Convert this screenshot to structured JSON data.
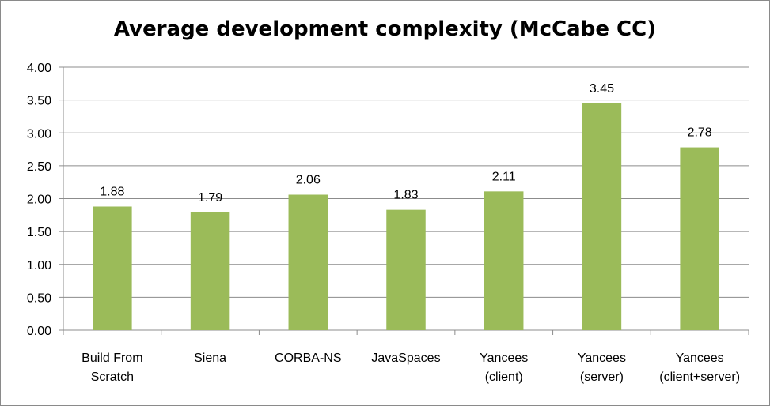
{
  "chart_data": {
    "type": "bar",
    "title": "Average development complexity (McCabe CC)",
    "categories": [
      [
        "Build From",
        "Scratch"
      ],
      [
        "Siena"
      ],
      [
        "CORBA-NS"
      ],
      [
        "JavaSpaces"
      ],
      [
        "Yancees",
        "(client)"
      ],
      [
        "Yancees",
        "(server)"
      ],
      [
        "Yancees",
        "(client+server)"
      ]
    ],
    "values": [
      1.88,
      1.79,
      2.06,
      1.83,
      2.11,
      3.45,
      2.78
    ],
    "data_labels": [
      "1.88",
      "1.79",
      "2.06",
      "1.83",
      "2.11",
      "3.45",
      "2.78"
    ],
    "y_ticks": [
      "0.00",
      "0.50",
      "1.00",
      "1.50",
      "2.00",
      "2.50",
      "3.00",
      "3.50",
      "4.00"
    ],
    "ylim": [
      0,
      4
    ],
    "xlabel": "",
    "ylabel": "",
    "grid": true,
    "legend": "none",
    "bar_color": "#9bbb59",
    "grid_color": "#8c8c8c"
  }
}
